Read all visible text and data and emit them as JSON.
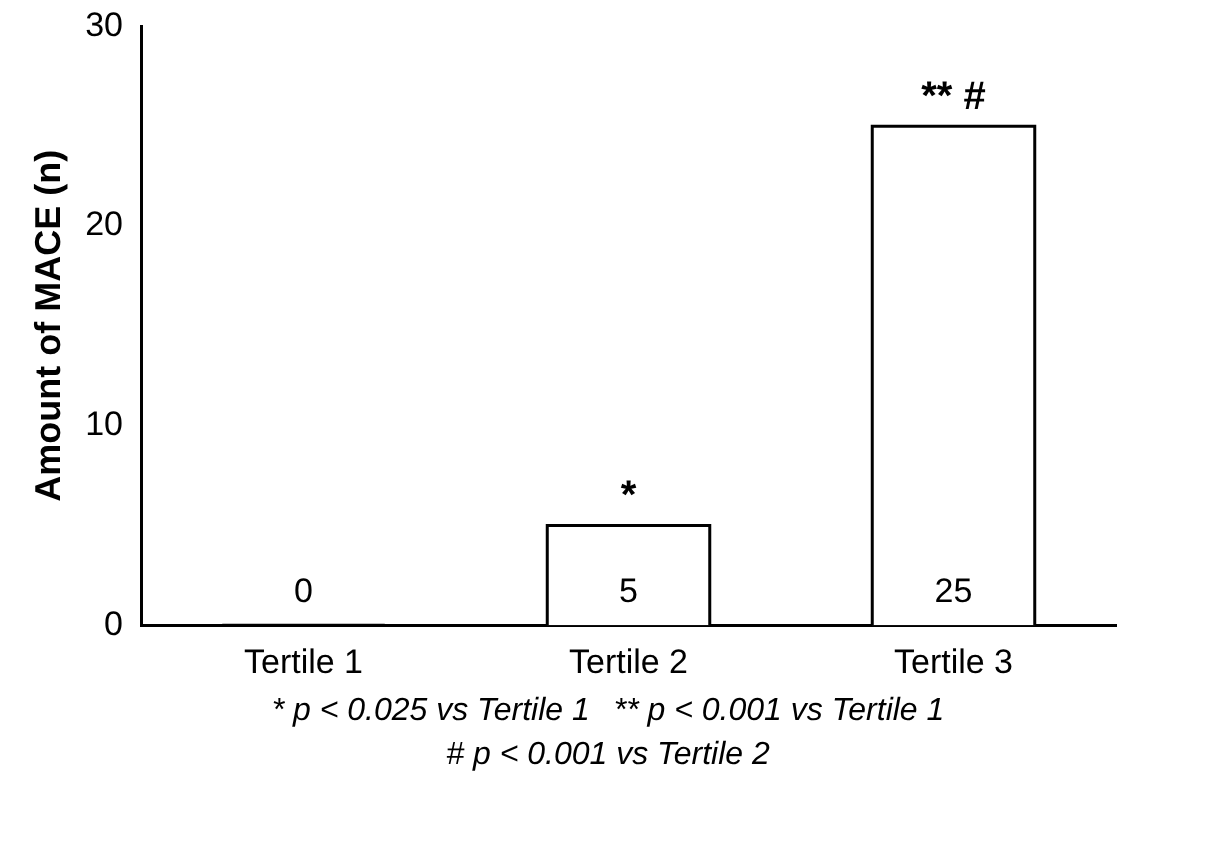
{
  "chart_data": {
    "type": "bar",
    "ylabel": "Amount of MACE (n)",
    "categories": [
      "Tertile 1",
      "Tertile 2",
      "Tertile 3"
    ],
    "values": [
      0,
      5,
      25
    ],
    "color": "#ffffff",
    "ylim": [
      0,
      30
    ],
    "yticks": [
      0,
      10,
      20,
      30
    ],
    "grid": false,
    "legend": false,
    "data_labels": true,
    "annotations": [
      {
        "text": "*",
        "x": "Tertile 2",
        "y": 5
      },
      {
        "text": "** #",
        "x": "Tertile 3",
        "y": 25
      },
      "* p < 0.025 vs Tertile 1",
      "** p < 0.001 vs Tertile 1",
      "# p < 0.001 vs Tertile 2"
    ]
  }
}
